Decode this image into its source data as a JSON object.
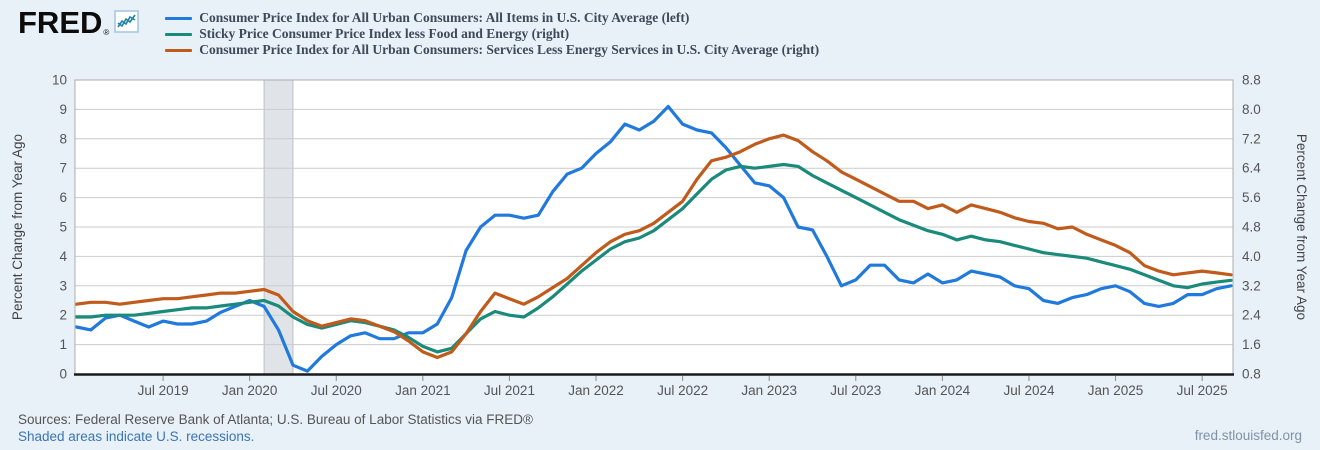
{
  "logo": {
    "text": "FRED",
    "registered": "®"
  },
  "legend": {
    "items": [
      {
        "label": "Consumer Price Index for All Urban Consumers: All Items in U.S. City Average (left)",
        "color": "#2079dd"
      },
      {
        "label": "Sticky Price Consumer Price Index less Food and Energy (right)",
        "color": "#1a8a7a"
      },
      {
        "label": "Consumer Price Index for All Urban Consumers: Services Less Energy Services in U.S. City Average (right)",
        "color": "#c05b1b"
      }
    ]
  },
  "chart_data": {
    "type": "line",
    "freq": "monthly",
    "x_start": "2019-01",
    "x_end": "2025-09",
    "grid": true,
    "legend_position": "top-left",
    "x_tick_labels": [
      "Jul 2019",
      "Jan 2020",
      "Jul 2020",
      "Jan 2021",
      "Jul 2021",
      "Jan 2022",
      "Jul 2022",
      "Jan 2023",
      "Jul 2023",
      "Jan 2024",
      "Jul 2024",
      "Jan 2025",
      "Jul 2025"
    ],
    "x_tick_month_index": [
      6,
      12,
      18,
      24,
      30,
      36,
      42,
      48,
      54,
      60,
      66,
      72,
      78
    ],
    "left_axis": {
      "title": "Percent Change from Year Ago",
      "range": [
        0,
        10
      ],
      "ticks": [
        "0",
        "1",
        "2",
        "3",
        "4",
        "5",
        "6",
        "7",
        "8",
        "9",
        "10"
      ]
    },
    "right_axis": {
      "title": "Percent Change from Year Ago",
      "range": [
        0.8,
        8.8
      ],
      "ticks": [
        "0.8",
        "1.6",
        "2.4",
        "3.2",
        "4.0",
        "4.8",
        "5.6",
        "6.4",
        "7.2",
        "8.0",
        "8.8"
      ]
    },
    "recession_shading": {
      "start_month_index": 13,
      "end_month_index": 15
    },
    "series": [
      {
        "name": "Consumer Price Index for All Urban Consumers: All Items in U.S. City Average",
        "axis": "left",
        "color": "#2079dd",
        "values": [
          1.6,
          1.5,
          1.9,
          2.0,
          1.8,
          1.6,
          1.8,
          1.7,
          1.7,
          1.8,
          2.1,
          2.3,
          2.5,
          2.3,
          1.5,
          0.3,
          0.1,
          0.6,
          1.0,
          1.3,
          1.4,
          1.2,
          1.2,
          1.4,
          1.4,
          1.7,
          2.6,
          4.2,
          5.0,
          5.4,
          5.4,
          5.3,
          5.4,
          6.2,
          6.8,
          7.0,
          7.5,
          7.9,
          8.5,
          8.3,
          8.6,
          9.1,
          8.5,
          8.3,
          8.2,
          7.7,
          7.1,
          6.5,
          6.4,
          6.0,
          5.0,
          4.9,
          4.0,
          3.0,
          3.2,
          3.7,
          3.7,
          3.2,
          3.1,
          3.4,
          3.1,
          3.2,
          3.5,
          3.4,
          3.3,
          3.0,
          2.9,
          2.5,
          2.4,
          2.6,
          2.7,
          2.9,
          3.0,
          2.8,
          2.4,
          2.3,
          2.4,
          2.7,
          2.7,
          2.9,
          3.0
        ]
      },
      {
        "name": "Sticky Price Consumer Price Index less Food and Energy",
        "axis": "right",
        "color": "#1a8a7a",
        "values": [
          2.35,
          2.35,
          2.4,
          2.4,
          2.4,
          2.45,
          2.5,
          2.55,
          2.6,
          2.6,
          2.65,
          2.7,
          2.75,
          2.8,
          2.65,
          2.35,
          2.15,
          2.05,
          2.15,
          2.25,
          2.2,
          2.1,
          2.0,
          1.8,
          1.55,
          1.4,
          1.5,
          1.9,
          2.3,
          2.5,
          2.4,
          2.35,
          2.6,
          2.9,
          3.25,
          3.6,
          3.9,
          4.2,
          4.4,
          4.5,
          4.7,
          5.0,
          5.3,
          5.7,
          6.1,
          6.35,
          6.45,
          6.4,
          6.45,
          6.5,
          6.45,
          6.2,
          6.0,
          5.8,
          5.6,
          5.4,
          5.2,
          5.0,
          4.85,
          4.7,
          4.6,
          4.45,
          4.55,
          4.45,
          4.4,
          4.3,
          4.2,
          4.1,
          4.05,
          4.0,
          3.95,
          3.85,
          3.75,
          3.65,
          3.5,
          3.35,
          3.2,
          3.15,
          3.25,
          3.3,
          3.35
        ]
      },
      {
        "name": "Consumer Price Index for All Urban Consumers: Services Less Energy Services in U.S. City Average",
        "axis": "right",
        "color": "#c05b1b",
        "values": [
          2.7,
          2.75,
          2.75,
          2.7,
          2.75,
          2.8,
          2.85,
          2.85,
          2.9,
          2.95,
          3.0,
          3.0,
          3.05,
          3.1,
          2.95,
          2.5,
          2.25,
          2.1,
          2.2,
          2.3,
          2.25,
          2.1,
          1.95,
          1.7,
          1.4,
          1.25,
          1.4,
          1.9,
          2.5,
          3.0,
          2.85,
          2.7,
          2.9,
          3.15,
          3.4,
          3.75,
          4.1,
          4.4,
          4.6,
          4.7,
          4.9,
          5.2,
          5.5,
          6.1,
          6.6,
          6.7,
          6.85,
          7.05,
          7.2,
          7.3,
          7.15,
          6.85,
          6.6,
          6.3,
          6.1,
          5.9,
          5.7,
          5.5,
          5.5,
          5.3,
          5.4,
          5.2,
          5.4,
          5.3,
          5.2,
          5.05,
          4.95,
          4.9,
          4.75,
          4.8,
          4.6,
          4.45,
          4.3,
          4.1,
          3.75,
          3.6,
          3.5,
          3.55,
          3.6,
          3.55,
          3.5
        ]
      }
    ]
  },
  "footer": {
    "sources": "Sources: Federal Reserve Bank of Atlanta; U.S. Bureau of Labor Statistics via FRED®",
    "recession_note": "Shaded areas indicate U.S. recessions.",
    "site": "fred.stlouisfed.org"
  }
}
